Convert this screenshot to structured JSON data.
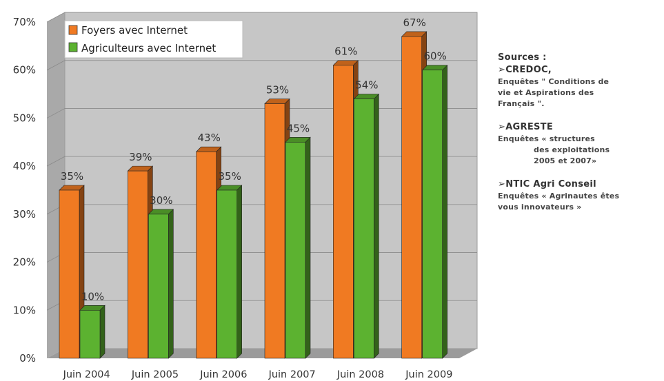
{
  "chart_data": {
    "type": "bar",
    "categories": [
      "Juin 2004",
      "Juin 2005",
      "Juin 2006",
      "Juin 2007",
      "Juin 2008",
      "Juin 2009"
    ],
    "series": [
      {
        "name": "Foyers avec Internet",
        "values": [
          35,
          39,
          43,
          53,
          61,
          67
        ],
        "color": "#f07a22"
      },
      {
        "name": "Agriculteurs avec Internet",
        "values": [
          10,
          30,
          35,
          45,
          54,
          60
        ],
        "color": "#5cb230"
      }
    ],
    "yticks": [
      "0%",
      "10%",
      "20%",
      "30%",
      "40%",
      "50%",
      "60%",
      "70%"
    ],
    "ylim": [
      0,
      70
    ],
    "data_labels": [
      [
        "35%",
        "39%",
        "43%",
        "53%",
        "61%",
        "67%"
      ],
      [
        "10%",
        "30%",
        "35%",
        "45%",
        "54%",
        "60%"
      ]
    ],
    "legend_position": "top-left",
    "grid": true
  },
  "sources": {
    "title": "Sources :",
    "items": [
      {
        "heading": "➢CREDOC,",
        "lines": [
          "Enquêtes \" Conditions de",
          "vie et Aspirations des",
          "Français \"."
        ]
      },
      {
        "heading": "➢AGRESTE",
        "lines": [
          "Enquêtes « structures",
          "des exploitations",
          "2005 et 2007»"
        ]
      },
      {
        "heading": "➢NTIC Agri Conseil",
        "lines": [
          "Enquêtes « Agrinautes êtes",
          "vous innovateurs »"
        ]
      }
    ]
  }
}
